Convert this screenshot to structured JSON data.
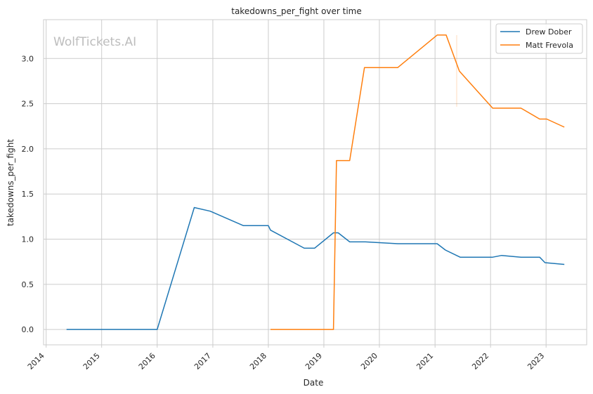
{
  "chart_data": {
    "type": "line",
    "title": "takedowns_per_fight over time",
    "xlabel": "Date",
    "ylabel": "takedowns_per_fight",
    "watermark": "WolfTickets.AI",
    "x_ticks": [
      "2014",
      "2015",
      "2016",
      "2017",
      "2018",
      "2019",
      "2020",
      "2021",
      "2022",
      "2023"
    ],
    "y_ticks": [
      "0.0",
      "0.5",
      "1.0",
      "1.5",
      "2.0",
      "2.5",
      "3.0"
    ],
    "xlim": [
      "2013-12-15",
      "2023-09-25"
    ],
    "ylim": [
      -0.17,
      3.43
    ],
    "grid": true,
    "legend_position": "top-right",
    "colors": {
      "Drew Dober": "#1f77b4",
      "Matt Frevola": "#ff7f0e"
    },
    "series": [
      {
        "name": "Drew Dober",
        "points": [
          [
            "2014-05-15",
            0.0
          ],
          [
            "2015-03-01",
            0.0
          ],
          [
            "2016-01-01",
            0.0
          ],
          [
            "2016-09-01",
            1.35
          ],
          [
            "2016-12-15",
            1.31
          ],
          [
            "2017-07-20",
            1.15
          ],
          [
            "2018-01-01",
            1.15
          ],
          [
            "2018-01-15",
            1.1
          ],
          [
            "2018-08-25",
            0.9
          ],
          [
            "2018-11-01",
            0.9
          ],
          [
            "2019-03-05",
            1.07
          ],
          [
            "2019-04-05",
            1.07
          ],
          [
            "2019-06-20",
            0.97
          ],
          [
            "2019-10-01",
            0.97
          ],
          [
            "2020-05-01",
            0.95
          ],
          [
            "2021-01-15",
            0.95
          ],
          [
            "2021-03-10",
            0.88
          ],
          [
            "2021-06-15",
            0.8
          ],
          [
            "2022-01-15",
            0.8
          ],
          [
            "2022-03-15",
            0.82
          ],
          [
            "2022-07-20",
            0.8
          ],
          [
            "2022-11-20",
            0.8
          ],
          [
            "2022-12-25",
            0.74
          ],
          [
            "2023-05-01",
            0.72
          ]
        ]
      },
      {
        "name": "Matt Frevola",
        "points": [
          [
            "2018-01-15",
            0.0
          ],
          [
            "2019-03-05",
            0.0
          ],
          [
            "2019-03-25",
            1.87
          ],
          [
            "2019-06-20",
            1.87
          ],
          [
            "2019-09-25",
            2.9
          ],
          [
            "2020-05-01",
            2.9
          ],
          [
            "2021-01-15",
            3.26
          ],
          [
            "2021-03-15",
            3.26
          ],
          [
            "2021-06-10",
            2.86
          ],
          [
            "2022-01-15",
            2.45
          ],
          [
            "2022-07-20",
            2.45
          ],
          [
            "2022-11-20",
            2.33
          ],
          [
            "2023-01-05",
            2.33
          ],
          [
            "2023-05-01",
            2.24
          ]
        ]
      }
    ]
  }
}
